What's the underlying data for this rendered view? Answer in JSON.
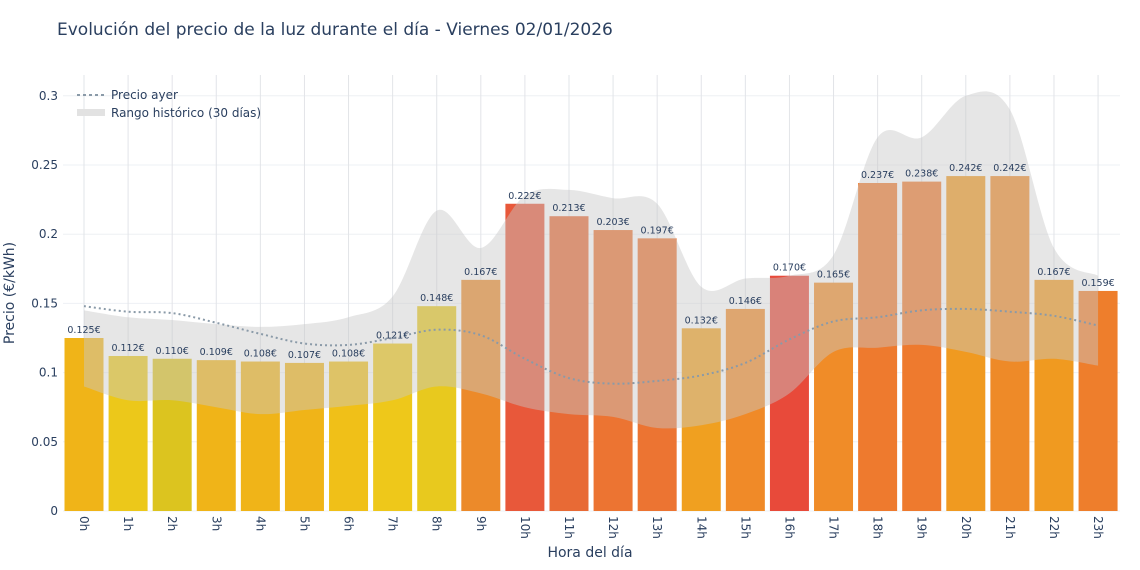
{
  "title": "Evolución del precio de la luz durante el día - Viernes 02/01/2026",
  "chart_data": {
    "type": "bar",
    "title": "Evolución del precio de la luz durante el día - Viernes 02/01/2026",
    "xlabel": "Hora del día",
    "ylabel": "Precio (€/kWh)",
    "ylim": [
      0,
      0.31
    ],
    "yticks": [
      0,
      0.05,
      0.1,
      0.15,
      0.2,
      0.25,
      0.3
    ],
    "ytick_labels": [
      "0",
      "0.05",
      "0.1",
      "0.15",
      "0.2",
      "0.25",
      "0.3"
    ],
    "grid": true,
    "legend_position": "top-left",
    "categories": [
      "0h",
      "1h",
      "2h",
      "3h",
      "4h",
      "5h",
      "6h",
      "7h",
      "8h",
      "9h",
      "10h",
      "11h",
      "12h",
      "13h",
      "14h",
      "15h",
      "16h",
      "17h",
      "18h",
      "19h",
      "20h",
      "21h",
      "22h",
      "23h"
    ],
    "values": [
      0.125,
      0.112,
      0.11,
      0.109,
      0.108,
      0.107,
      0.108,
      0.121,
      0.148,
      0.167,
      0.222,
      0.213,
      0.203,
      0.197,
      0.132,
      0.146,
      0.17,
      0.165,
      0.237,
      0.238,
      0.242,
      0.242,
      0.167,
      0.159
    ],
    "data_labels": [
      "0.125€",
      "0.112€",
      "0.110€",
      "0.109€",
      "0.108€",
      "0.107€",
      "0.108€",
      "0.121€",
      "0.148€",
      "0.167€",
      "0.222€",
      "0.213€",
      "0.203€",
      "0.197€",
      "0.132€",
      "0.146€",
      "0.170€",
      "0.165€",
      "0.237€",
      "0.238€",
      "0.242€",
      "0.242€",
      "0.167€",
      "0.159€"
    ],
    "bar_colors": [
      "#f0b418",
      "#ecc81a",
      "#dcc41f",
      "#f0b418",
      "#f0b418",
      "#f0b418",
      "#f0c018",
      "#eec81a",
      "#e8c91e",
      "#ec8a2a",
      "#e8583a",
      "#e86a35",
      "#ec7432",
      "#ec7432",
      "#f0a020",
      "#f08a28",
      "#e84a3a",
      "#f08c28",
      "#ee7a2e",
      "#ee7a2e",
      "#f09a20",
      "#ee8a28",
      "#f09a20",
      "#ee7e2c"
    ],
    "series": [
      {
        "name": "Precio ayer",
        "type": "line",
        "style": "dotted",
        "color": "#8a9aa8",
        "values": [
          0.148,
          0.144,
          0.143,
          0.136,
          0.128,
          0.121,
          0.12,
          0.125,
          0.131,
          0.127,
          0.11,
          0.096,
          0.092,
          0.094,
          0.098,
          0.107,
          0.124,
          0.137,
          0.14,
          0.145,
          0.146,
          0.144,
          0.141,
          0.134
        ]
      },
      {
        "name": "Rango histórico (30 días)",
        "type": "band",
        "color": "#d9d9d9",
        "upper": [
          0.145,
          0.14,
          0.138,
          0.135,
          0.133,
          0.135,
          0.14,
          0.155,
          0.217,
          0.19,
          0.228,
          0.232,
          0.226,
          0.222,
          0.162,
          0.168,
          0.17,
          0.185,
          0.27,
          0.27,
          0.3,
          0.29,
          0.19,
          0.17
        ],
        "lower": [
          0.09,
          0.08,
          0.08,
          0.075,
          0.07,
          0.073,
          0.076,
          0.08,
          0.09,
          0.085,
          0.075,
          0.07,
          0.068,
          0.06,
          0.062,
          0.07,
          0.085,
          0.115,
          0.118,
          0.12,
          0.115,
          0.108,
          0.11,
          0.105
        ]
      }
    ]
  }
}
